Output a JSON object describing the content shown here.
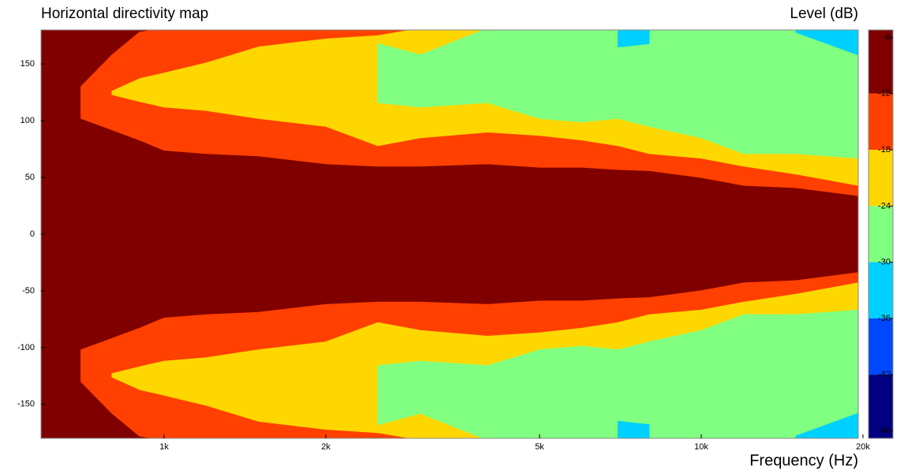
{
  "chart_data": {
    "type": "contour",
    "title": "Horizontal directivity map",
    "xlabel": "Frequency  (Hz)",
    "colorbar_label": "Level  (dB)",
    "xscale": "log",
    "xlim": [
      590,
      19600
    ],
    "ylim": [
      -180,
      180
    ],
    "xticks": [
      {
        "value": 1000,
        "label": "1k"
      },
      {
        "value": 2000,
        "label": "2k"
      },
      {
        "value": 5000,
        "label": "5k"
      },
      {
        "value": 10000,
        "label": "10k"
      },
      {
        "value": 20000,
        "label": "20k"
      }
    ],
    "yticks": [
      -150,
      -100,
      -50,
      0,
      50,
      100,
      150
    ],
    "x": [
      600,
      650,
      700,
      800,
      900,
      1000,
      1200,
      1500,
      2000,
      2500,
      3000,
      4000,
      5000,
      6000,
      7000,
      8000,
      10000,
      12000,
      15000,
      19600
    ],
    "series": [
      {
        "level": -12,
        "values": [
          null,
          null,
          102,
          92,
          83,
          74,
          71,
          69,
          62,
          60,
          60,
          62,
          59,
          59,
          57,
          56,
          50,
          43,
          41,
          34
        ],
        "outer": [
          null,
          null,
          130,
          158,
          178,
          null,
          null,
          null,
          null,
          null,
          null,
          null,
          null,
          null,
          null,
          null,
          null,
          null,
          null,
          null
        ]
      },
      {
        "level": -18,
        "values": [
          null,
          null,
          null,
          123,
          117,
          112,
          109,
          102,
          95,
          78,
          85,
          90,
          87,
          83,
          78,
          71,
          67,
          60,
          53,
          43
        ],
        "outer": [
          null,
          null,
          null,
          126,
          137,
          142,
          151,
          165,
          172,
          175,
          null,
          null,
          null,
          null,
          null,
          null,
          null,
          null,
          null,
          null
        ]
      },
      {
        "level": -24,
        "values": [
          null,
          null,
          null,
          null,
          null,
          null,
          null,
          null,
          null,
          116,
          112,
          116,
          102,
          99,
          102,
          95,
          85,
          71,
          71,
          67
        ],
        "outer": [
          null,
          null,
          null,
          null,
          null,
          null,
          null,
          null,
          null,
          168,
          158,
          null,
          null,
          null,
          null,
          null,
          null,
          null,
          null,
          null
        ]
      },
      {
        "level": -30,
        "values": [
          null,
          null,
          null,
          null,
          null,
          null,
          null,
          null,
          null,
          null,
          null,
          null,
          null,
          null,
          165,
          168,
          null,
          null,
          178,
          158
        ],
        "outer": [
          null,
          null,
          null,
          null,
          null,
          null,
          null,
          null,
          null,
          null,
          null,
          null,
          null,
          null,
          null,
          null,
          null,
          null,
          null,
          null
        ]
      }
    ],
    "colorbar": {
      "clim": [
        -48.8,
        -5.2
      ],
      "ticks": [
        -6,
        -12,
        -18,
        -24,
        -30,
        -36,
        -42,
        -48
      ],
      "colors": [
        "#800000",
        "#ff4000",
        "#ffd700",
        "#80ff80",
        "#00d0ff",
        "#0048ff",
        "#000080"
      ]
    }
  }
}
